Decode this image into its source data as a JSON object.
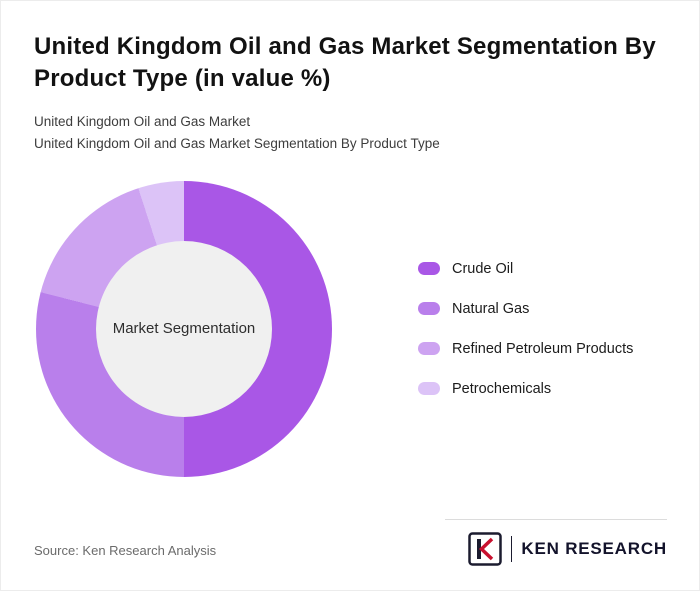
{
  "header": {
    "title": "United Kingdom Oil and Gas Market Segmentation By Product Type (in value %)",
    "subtitle1": "United Kingdom Oil and Gas Market",
    "subtitle2": "United Kingdom Oil and Gas Market Segmentation By Product Type"
  },
  "chart_data": {
    "type": "pie",
    "donut": true,
    "title": "United Kingdom Oil and Gas Market Segmentation By Product Type (in value %)",
    "center_label": "Market Segmentation",
    "categories": [
      "Crude Oil",
      "Natural Gas",
      "Refined Petroleum Products",
      "Petrochemicals"
    ],
    "values": [
      50,
      29,
      16,
      5
    ],
    "colors": [
      "#a957e6",
      "#b97feb",
      "#cda3f1",
      "#dcc3f7"
    ],
    "center_color": "#f0f0f0",
    "legend_position": "right",
    "start_angle_deg": 0
  },
  "footer": {
    "source": "Source: Ken Research Analysis",
    "brand": "KEN RESEARCH",
    "emblem_letter": "K"
  }
}
